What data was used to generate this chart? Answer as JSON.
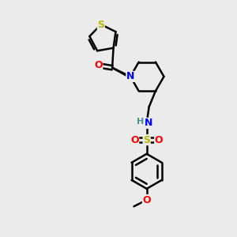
{
  "bg_color": "#ebebeb",
  "atom_colors": {
    "S": "#b8b800",
    "N": "#0000ff",
    "O": "#ff0000",
    "C": "#000000",
    "H": "#4a9090"
  },
  "bond_color": "#000000",
  "bond_width": 1.8,
  "label_fontsize": 10,
  "label_fontsize_small": 9
}
